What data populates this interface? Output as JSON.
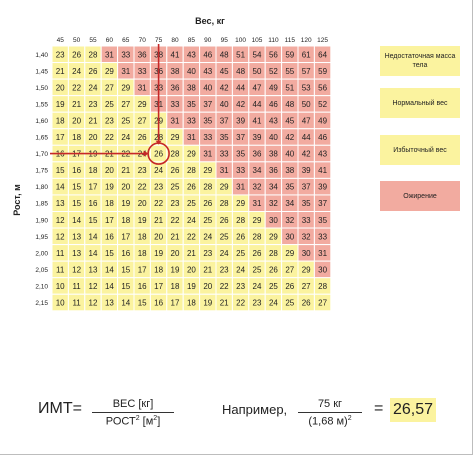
{
  "chart_data": {
    "type": "heatmap",
    "xlabel": "Вес, кг",
    "ylabel": "Рост, м",
    "x": [
      "45",
      "50",
      "55",
      "60",
      "65",
      "70",
      "75",
      "80",
      "85",
      "90",
      "95",
      "100",
      "105",
      "110",
      "115",
      "120",
      "125"
    ],
    "y": [
      "1,40",
      "1,45",
      "1,50",
      "1,55",
      "1,60",
      "1,65",
      "1,70",
      "1,75",
      "1,80",
      "1,85",
      "1,90",
      "1,95",
      "2,00",
      "2,05",
      "2,10",
      "2,15"
    ],
    "values": [
      [
        23,
        26,
        28,
        31,
        33,
        36,
        38,
        41,
        43,
        46,
        48,
        51,
        54,
        56,
        59,
        61,
        64
      ],
      [
        21,
        24,
        26,
        29,
        31,
        33,
        36,
        38,
        40,
        43,
        45,
        48,
        50,
        52,
        55,
        57,
        59
      ],
      [
        20,
        22,
        24,
        27,
        29,
        31,
        33,
        36,
        38,
        40,
        42,
        44,
        47,
        49,
        51,
        53,
        56
      ],
      [
        19,
        21,
        23,
        25,
        27,
        29,
        31,
        33,
        35,
        37,
        40,
        42,
        44,
        46,
        48,
        50,
        52
      ],
      [
        18,
        20,
        21,
        23,
        25,
        27,
        29,
        31,
        33,
        35,
        37,
        39,
        41,
        43,
        45,
        47,
        49
      ],
      [
        17,
        18,
        20,
        22,
        24,
        26,
        28,
        29,
        31,
        33,
        35,
        37,
        39,
        40,
        42,
        44,
        46
      ],
      [
        16,
        17,
        19,
        21,
        22,
        24,
        26,
        28,
        29,
        31,
        33,
        35,
        36,
        38,
        40,
        42,
        43
      ],
      [
        15,
        16,
        18,
        20,
        21,
        23,
        24,
        26,
        28,
        29,
        31,
        33,
        34,
        36,
        38,
        39,
        41
      ],
      [
        14,
        15,
        17,
        19,
        20,
        22,
        23,
        25,
        26,
        28,
        29,
        31,
        32,
        34,
        35,
        37,
        39
      ],
      [
        13,
        15,
        16,
        18,
        19,
        20,
        22,
        23,
        25,
        26,
        28,
        29,
        31,
        32,
        34,
        35,
        37
      ],
      [
        12,
        14,
        15,
        17,
        18,
        19,
        21,
        22,
        24,
        25,
        26,
        28,
        29,
        30,
        32,
        33,
        35
      ],
      [
        12,
        13,
        14,
        16,
        17,
        18,
        20,
        21,
        22,
        24,
        25,
        26,
        28,
        29,
        30,
        32,
        33
      ],
      [
        11,
        13,
        14,
        15,
        16,
        18,
        19,
        20,
        21,
        23,
        24,
        25,
        26,
        28,
        29,
        30,
        31
      ],
      [
        11,
        12,
        13,
        14,
        15,
        17,
        18,
        19,
        20,
        21,
        23,
        24,
        25,
        26,
        27,
        29,
        30
      ],
      [
        10,
        11,
        12,
        14,
        15,
        16,
        17,
        18,
        19,
        20,
        22,
        23,
        24,
        25,
        26,
        27,
        28
      ],
      [
        10,
        11,
        12,
        13,
        14,
        15,
        16,
        17,
        18,
        19,
        21,
        22,
        23,
        24,
        25,
        26,
        27
      ]
    ],
    "categories_legend": [
      {
        "label": "Недостаточная масса тела",
        "color": "#fbf39f"
      },
      {
        "label": "Нормальный вес",
        "color": "#fbf39f"
      },
      {
        "label": "Избыточный вес",
        "color": "#fbf39f"
      },
      {
        "label": "Ожирение",
        "color": "#f2aba0"
      }
    ],
    "colors": {
      "low": "#fbf39f",
      "high": "#f2aba0",
      "grid": "#ffffff",
      "marker": "#c62828"
    },
    "highlight": {
      "weight": "75",
      "height": "1,70",
      "value": "26"
    },
    "threshold_value": 30
  },
  "formula": {
    "lhs": "ИМТ=",
    "numerator": "ВЕС [кг]",
    "denominator": "РОСТ",
    "denominator_exp": "2",
    "denominator_unit_open": " [м",
    "denominator_unit_exp": "2",
    "denominator_unit_close": "]",
    "example_label": "Например,",
    "example_numerator": "75 кг",
    "example_denominator": "(1,68 м)",
    "example_denominator_exp": "2",
    "equals": "=",
    "result": "26,57"
  }
}
